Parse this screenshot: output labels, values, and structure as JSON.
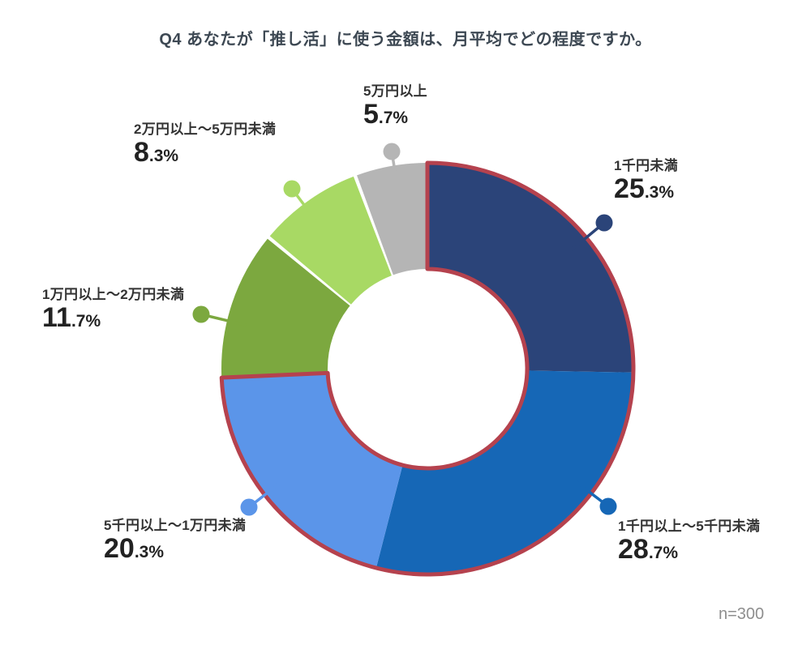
{
  "title": "Q4 あなたが「推し活」に使う金額は、月平均でどの程度ですか。",
  "sample_size_label": "n=300",
  "colors": {
    "highlight_outline": "#b5424e",
    "title_text": "#3d4853",
    "label_text": "#333333",
    "value_text": "#222222",
    "sample_size_text": "#8e8e8e",
    "background": "#ffffff"
  },
  "chart_data": {
    "type": "pie",
    "donut": true,
    "title": "Q4 あなたが「推し活」に使う金額は、月平均でどの程度ですか。",
    "unit": "%",
    "start_angle_deg": 0,
    "direction": "clockwise",
    "legend_position": "callout-labels",
    "annotation": "n=300",
    "highlight_outline_color": "#b5424e",
    "segments": [
      {
        "label": "1千円未満",
        "value": 25.3,
        "value_int": "25",
        "value_frac": ".3%",
        "color": "#2b4479",
        "highlighted": true
      },
      {
        "label": "1千円以上〜5千円未満",
        "value": 28.7,
        "value_int": "28",
        "value_frac": ".7%",
        "color": "#1667b6",
        "highlighted": true
      },
      {
        "label": "5千円以上〜1万円未満",
        "value": 20.3,
        "value_int": "20",
        "value_frac": ".3%",
        "color": "#5b95e9",
        "highlighted": true
      },
      {
        "label": "1万円以上〜2万円未満",
        "value": 11.7,
        "value_int": "11",
        "value_frac": ".7%",
        "color": "#7ca83f",
        "highlighted": false
      },
      {
        "label": "2万円以上〜5万円未満",
        "value": 8.3,
        "value_int": "8",
        "value_frac": ".3%",
        "color": "#a8d964",
        "highlighted": false
      },
      {
        "label": "5万円以上",
        "value": 5.7,
        "value_int": "5",
        "value_frac": ".7%",
        "color": "#b5b5b5",
        "highlighted": false
      }
    ]
  }
}
